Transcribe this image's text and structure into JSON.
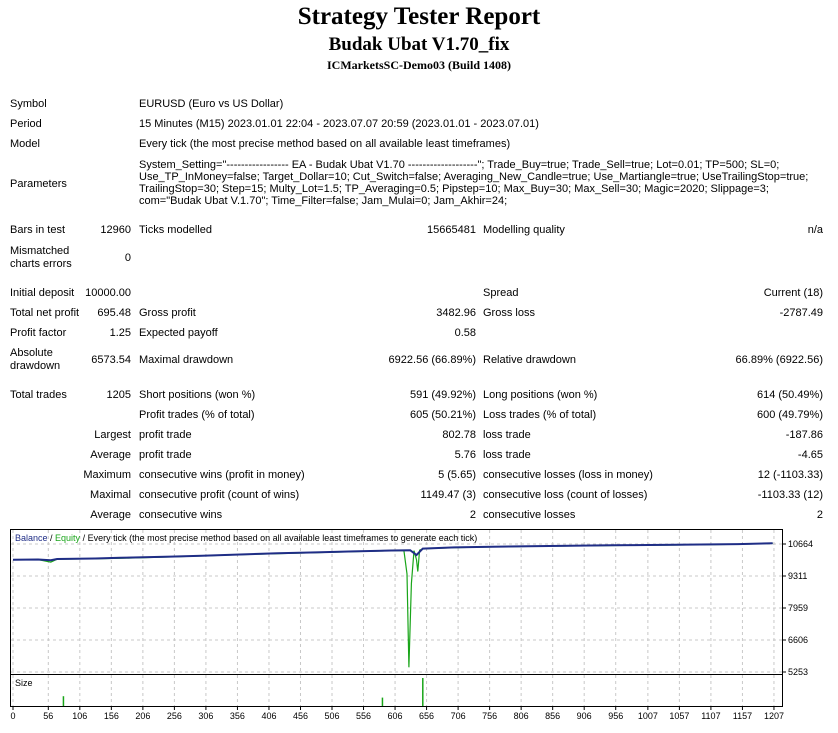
{
  "title": "Strategy Tester Report",
  "ea_name": "Budak Ubat V1.70_fix",
  "server": "ICMarketsSC-Demo03 (Build 1408)",
  "info": {
    "symbol_label": "Symbol",
    "symbol": "EURUSD (Euro vs US Dollar)",
    "period_label": "Period",
    "period": "15 Minutes (M15) 2023.01.01 22:04 - 2023.07.07 20:59 (2023.01.01 - 2023.07.01)",
    "model_label": "Model",
    "model": "Every tick (the most precise method based on all available least timeframes)",
    "parameters_label": "Parameters",
    "parameters": "System_Setting=\"----------------- EA - Budak Ubat V1.70 -------------------\"; Trade_Buy=true; Trade_Sell=true; Lot=0.01; TP=500; SL=0; Use_TP_InMoney=false; Target_Dollar=10; Cut_Switch=false; Averaging_New_Candle=true; Use_Martiangle=true; UseTrailingStop=true; TrailingStop=30; Step=15; Multy_Lot=1.5; TP_Averaging=0.5; Pipstep=10; Max_Buy=30; Max_Sell=30; Magic=2020; Slippage=3; com=\"Budak Ubat V.1.70\"; Time_Filter=false; Jam_Mulai=0; Jam_Akhir=24;",
    "bars_label": "Bars in test",
    "bars": "12960",
    "ticks_label": "Ticks modelled",
    "ticks": "15665481",
    "quality_label": "Modelling quality",
    "quality": "n/a",
    "mismatched_label": "Mismatched charts errors",
    "mismatched": "0"
  },
  "results": {
    "initial_deposit_label": "Initial deposit",
    "initial_deposit": "10000.00",
    "spread_label": "Spread",
    "spread": "Current (18)",
    "net_profit_label": "Total net profit",
    "net_profit": "695.48",
    "gross_profit_label": "Gross profit",
    "gross_profit": "3482.96",
    "gross_loss_label": "Gross loss",
    "gross_loss": "-2787.49",
    "profit_factor_label": "Profit factor",
    "profit_factor": "1.25",
    "expected_payoff_label": "Expected payoff",
    "expected_payoff": "0.58",
    "abs_drawdown_label": "Absolute drawdown",
    "abs_drawdown": "6573.54",
    "max_drawdown_label": "Maximal drawdown",
    "max_drawdown": "6922.56 (66.89%)",
    "rel_drawdown_label": "Relative drawdown",
    "rel_drawdown": "66.89% (6922.56)",
    "total_trades_label": "Total trades",
    "total_trades": "1205",
    "short_label": "Short positions (won %)",
    "short": "591 (49.92%)",
    "long_label": "Long positions (won %)",
    "long": "614 (50.49%)",
    "profit_trades_label": "Profit trades (% of total)",
    "profit_trades": "605 (50.21%)",
    "loss_trades_label": "Loss trades (% of total)",
    "loss_trades": "600 (49.79%)",
    "largest_label": "Largest",
    "largest_profit_label": "profit trade",
    "largest_profit": "802.78",
    "largest_loss_label": "loss trade",
    "largest_loss": "-187.86",
    "average_label": "Average",
    "average_profit_label": "profit trade",
    "average_profit": "5.76",
    "average_loss_label": "loss trade",
    "average_loss": "-4.65",
    "maximum_label": "Maximum",
    "max_cons_wins_label": "consecutive wins (profit in money)",
    "max_cons_wins": "5 (5.65)",
    "max_cons_losses_label": "consecutive losses (loss in money)",
    "max_cons_losses": "12 (-1103.33)",
    "maximal_label": "Maximal",
    "maximal_cons_profit_label": "consecutive profit (count of wins)",
    "maximal_cons_profit": "1149.47 (3)",
    "maximal_cons_loss_label": "consecutive loss (count of losses)",
    "maximal_cons_loss": "-1103.33 (12)",
    "average2_label": "Average",
    "avg_cons_wins_label": "consecutive wins",
    "avg_cons_wins": "2",
    "avg_cons_losses_label": "consecutive losses",
    "avg_cons_losses": "2"
  },
  "chart_data": {
    "type": "line",
    "legend": {
      "balance": "Balance",
      "sep1": " / ",
      "equity": "Equity",
      "sep2": " / ",
      "rest": "Every tick (the most precise method based on all available least timeframes to generate each tick)"
    },
    "colors": {
      "balance": "#1f2d86",
      "equity": "#19a519",
      "size": "#19a519"
    },
    "y_ticks": [
      "10664",
      "9311",
      "7959",
      "6606",
      "5253"
    ],
    "ylim": [
      5253,
      11000
    ],
    "x_ticks": [
      "0",
      "56",
      "106",
      "156",
      "206",
      "256",
      "306",
      "356",
      "406",
      "456",
      "506",
      "556",
      "606",
      "656",
      "706",
      "756",
      "806",
      "856",
      "906",
      "956",
      "1007",
      "1057",
      "1107",
      "1157",
      "1207"
    ],
    "xlim": [
      0,
      1215
    ],
    "balance_points": [
      [
        0,
        10000
      ],
      [
        40,
        10010
      ],
      [
        60,
        9980
      ],
      [
        70,
        10030
      ],
      [
        130,
        10050
      ],
      [
        170,
        10080
      ],
      [
        250,
        10130
      ],
      [
        300,
        10170
      ],
      [
        360,
        10220
      ],
      [
        420,
        10270
      ],
      [
        480,
        10310
      ],
      [
        540,
        10350
      ],
      [
        600,
        10390
      ],
      [
        630,
        10400
      ],
      [
        640,
        10200
      ],
      [
        650,
        10470
      ],
      [
        700,
        10520
      ],
      [
        760,
        10550
      ],
      [
        850,
        10580
      ],
      [
        950,
        10610
      ],
      [
        1050,
        10630
      ],
      [
        1150,
        10660
      ],
      [
        1205,
        10695
      ]
    ],
    "equity_points": [
      [
        0,
        10000
      ],
      [
        40,
        10000
      ],
      [
        60,
        9900
      ],
      [
        70,
        10020
      ],
      [
        130,
        10040
      ],
      [
        170,
        10060
      ],
      [
        250,
        10120
      ],
      [
        300,
        10160
      ],
      [
        360,
        10210
      ],
      [
        420,
        10260
      ],
      [
        480,
        10300
      ],
      [
        540,
        10340
      ],
      [
        600,
        10380
      ],
      [
        620,
        10390
      ],
      [
        625,
        9400
      ],
      [
        628,
        5450
      ],
      [
        632,
        9000
      ],
      [
        636,
        10380
      ],
      [
        640,
        10000
      ],
      [
        642,
        9500
      ],
      [
        645,
        10400
      ],
      [
        650,
        10460
      ],
      [
        700,
        10510
      ],
      [
        760,
        10540
      ],
      [
        850,
        10570
      ],
      [
        950,
        10600
      ],
      [
        1050,
        10620
      ],
      [
        1150,
        10650
      ],
      [
        1205,
        10690
      ]
    ],
    "size_label": "Size",
    "size_spikes": [
      [
        80,
        0.35
      ],
      [
        586,
        0.3
      ],
      [
        650,
        1.0
      ]
    ]
  }
}
